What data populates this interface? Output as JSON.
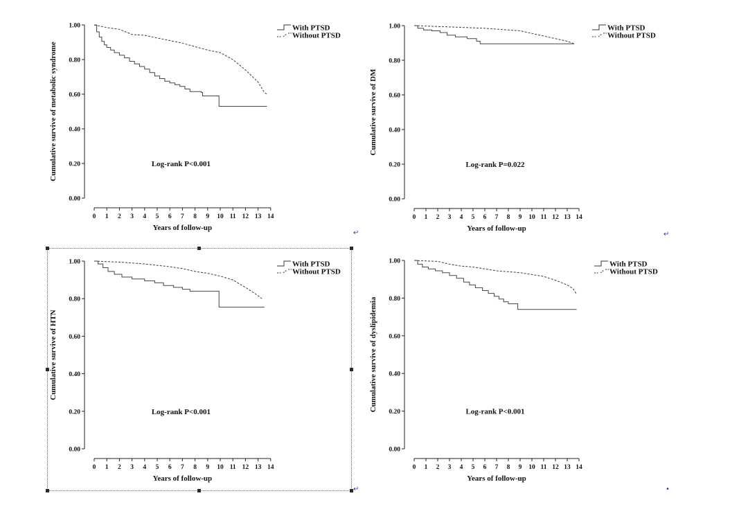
{
  "chart_data": [
    {
      "type": "line",
      "id": "metabolic",
      "xlabel": "Years of follow-up",
      "ylabel": "Cumulative survive of metabolic syndrome",
      "xticks": [
        0,
        1,
        2,
        3,
        4,
        5,
        6,
        7,
        8,
        9,
        10,
        11,
        12,
        13,
        14
      ],
      "yticks": [
        "0.00",
        "0.20",
        "0.40",
        "0.60",
        "0.80",
        "1.00"
      ],
      "xlim": [
        0,
        14
      ],
      "ylim": [
        0,
        1
      ],
      "annotation": "Log-rank P<0.001",
      "legend_position": "top-right",
      "series": [
        {
          "name": "With PTSD",
          "style": "solid",
          "step": true,
          "points": [
            [
              0,
              1.0
            ],
            [
              0.2,
              0.96
            ],
            [
              0.4,
              0.93
            ],
            [
              0.6,
              0.905
            ],
            [
              0.8,
              0.885
            ],
            [
              1.0,
              0.87
            ],
            [
              1.3,
              0.855
            ],
            [
              1.6,
              0.84
            ],
            [
              2.0,
              0.825
            ],
            [
              2.4,
              0.81
            ],
            [
              2.8,
              0.79
            ],
            [
              3.2,
              0.775
            ],
            [
              3.6,
              0.76
            ],
            [
              4.0,
              0.745
            ],
            [
              4.4,
              0.725
            ],
            [
              4.8,
              0.705
            ],
            [
              5.2,
              0.69
            ],
            [
              5.6,
              0.675
            ],
            [
              6.0,
              0.665
            ],
            [
              6.4,
              0.655
            ],
            [
              6.8,
              0.645
            ],
            [
              7.2,
              0.63
            ],
            [
              7.6,
              0.615
            ],
            [
              8.5,
              0.61
            ],
            [
              8.6,
              0.59
            ],
            [
              9.9,
              0.59
            ],
            [
              9.9,
              0.53
            ],
            [
              13.7,
              0.53
            ]
          ]
        },
        {
          "name": "Without PTSD",
          "style": "dashed",
          "step": false,
          "points": [
            [
              0,
              1.0
            ],
            [
              1,
              0.985
            ],
            [
              2,
              0.975
            ],
            [
              2.5,
              0.96
            ],
            [
              3,
              0.945
            ],
            [
              4,
              0.94
            ],
            [
              5,
              0.925
            ],
            [
              6,
              0.91
            ],
            [
              7,
              0.895
            ],
            [
              8,
              0.875
            ],
            [
              9,
              0.855
            ],
            [
              10,
              0.84
            ],
            [
              11,
              0.8
            ],
            [
              12,
              0.74
            ],
            [
              13,
              0.67
            ],
            [
              13.5,
              0.61
            ],
            [
              13.7,
              0.6
            ]
          ]
        }
      ]
    },
    {
      "type": "line",
      "id": "dm",
      "xlabel": "Years of follow-up",
      "ylabel": "Cumulative survive of DM",
      "xticks": [
        0,
        1,
        2,
        3,
        4,
        5,
        6,
        7,
        8,
        9,
        10,
        11,
        12,
        13,
        14
      ],
      "yticks": [
        "0.00",
        "0.20",
        "0.40",
        "0.60",
        "0.80",
        "1.00"
      ],
      "xlim": [
        0,
        14
      ],
      "ylim": [
        0,
        1
      ],
      "annotation": "Log-rank P=0.022",
      "legend_position": "top-right",
      "series": [
        {
          "name": "With PTSD",
          "style": "solid",
          "step": true,
          "points": [
            [
              0,
              1.0
            ],
            [
              0.3,
              0.985
            ],
            [
              0.8,
              0.975
            ],
            [
              1.5,
              0.97
            ],
            [
              2.2,
              0.96
            ],
            [
              2.8,
              0.945
            ],
            [
              3.5,
              0.935
            ],
            [
              4.5,
              0.925
            ],
            [
              5.3,
              0.91
            ],
            [
              5.6,
              0.895
            ],
            [
              13.6,
              0.895
            ]
          ]
        },
        {
          "name": "Without PTSD",
          "style": "dashed",
          "step": false,
          "points": [
            [
              0,
              1.0
            ],
            [
              2,
              0.995
            ],
            [
              4,
              0.99
            ],
            [
              6,
              0.985
            ],
            [
              8,
              0.975
            ],
            [
              9,
              0.97
            ],
            [
              10,
              0.955
            ],
            [
              11,
              0.94
            ],
            [
              12,
              0.925
            ],
            [
              13,
              0.91
            ],
            [
              13.6,
              0.895
            ]
          ]
        }
      ]
    },
    {
      "type": "line",
      "id": "htn",
      "xlabel": "Years of follow-up",
      "ylabel": "Cumulative survive of HTN",
      "xticks": [
        0,
        1,
        2,
        3,
        4,
        5,
        6,
        7,
        8,
        9,
        10,
        11,
        12,
        13,
        14
      ],
      "yticks": [
        "0.00",
        "0.20",
        "0.40",
        "0.60",
        "0.80",
        "1.00"
      ],
      "xlim": [
        0,
        14
      ],
      "ylim": [
        0,
        1
      ],
      "annotation": "Log-rank P<0.001",
      "legend_position": "top-right",
      "series": [
        {
          "name": "With PTSD",
          "style": "solid",
          "step": true,
          "points": [
            [
              0,
              1.0
            ],
            [
              0.3,
              0.985
            ],
            [
              0.7,
              0.965
            ],
            [
              1.1,
              0.945
            ],
            [
              1.6,
              0.93
            ],
            [
              2.2,
              0.915
            ],
            [
              3.0,
              0.905
            ],
            [
              4.0,
              0.895
            ],
            [
              4.8,
              0.885
            ],
            [
              5.5,
              0.87
            ],
            [
              6.3,
              0.86
            ],
            [
              7.0,
              0.85
            ],
            [
              7.6,
              0.84
            ],
            [
              9.9,
              0.84
            ],
            [
              9.9,
              0.755
            ],
            [
              13.5,
              0.755
            ]
          ]
        },
        {
          "name": "Without PTSD",
          "style": "dashed",
          "step": false,
          "points": [
            [
              0,
              1.0
            ],
            [
              2,
              0.995
            ],
            [
              4,
              0.985
            ],
            [
              6,
              0.97
            ],
            [
              7,
              0.96
            ],
            [
              8,
              0.945
            ],
            [
              9,
              0.935
            ],
            [
              10,
              0.92
            ],
            [
              11,
              0.9
            ],
            [
              12,
              0.86
            ],
            [
              12.8,
              0.825
            ],
            [
              13.3,
              0.8
            ]
          ]
        }
      ]
    },
    {
      "type": "line",
      "id": "dyslipidemia",
      "xlabel": "Years of follow-up",
      "ylabel": "Cumulative survive of dyslipidemia",
      "xticks": [
        0,
        1,
        2,
        3,
        4,
        5,
        6,
        7,
        8,
        9,
        10,
        11,
        12,
        13,
        14
      ],
      "yticks": [
        "0.00",
        "0.20",
        "0.40",
        "0.60",
        "0.80",
        "1.00"
      ],
      "xlim": [
        0,
        14
      ],
      "ylim": [
        0,
        1
      ],
      "annotation": "Log-rank P<0.001",
      "legend_position": "top-right",
      "series": [
        {
          "name": "With PTSD",
          "style": "solid",
          "step": true,
          "points": [
            [
              0,
              1.0
            ],
            [
              0.3,
              0.98
            ],
            [
              0.7,
              0.965
            ],
            [
              1.2,
              0.955
            ],
            [
              1.8,
              0.945
            ],
            [
              2.4,
              0.935
            ],
            [
              3.0,
              0.92
            ],
            [
              3.6,
              0.905
            ],
            [
              4.2,
              0.885
            ],
            [
              4.7,
              0.87
            ],
            [
              5.2,
              0.855
            ],
            [
              5.8,
              0.84
            ],
            [
              6.3,
              0.825
            ],
            [
              6.8,
              0.81
            ],
            [
              7.2,
              0.795
            ],
            [
              7.6,
              0.78
            ],
            [
              8.0,
              0.77
            ],
            [
              8.8,
              0.765
            ],
            [
              8.8,
              0.74
            ],
            [
              13.8,
              0.74
            ]
          ]
        },
        {
          "name": "Without PTSD",
          "style": "dashed",
          "step": false,
          "points": [
            [
              0,
              1.0
            ],
            [
              2,
              0.995
            ],
            [
              3,
              0.98
            ],
            [
              4,
              0.97
            ],
            [
              5,
              0.965
            ],
            [
              6,
              0.955
            ],
            [
              7,
              0.945
            ],
            [
              8,
              0.94
            ],
            [
              9,
              0.935
            ],
            [
              10,
              0.925
            ],
            [
              11,
              0.915
            ],
            [
              12,
              0.895
            ],
            [
              13,
              0.87
            ],
            [
              13.5,
              0.85
            ],
            [
              13.8,
              0.82
            ]
          ]
        }
      ]
    }
  ]
}
